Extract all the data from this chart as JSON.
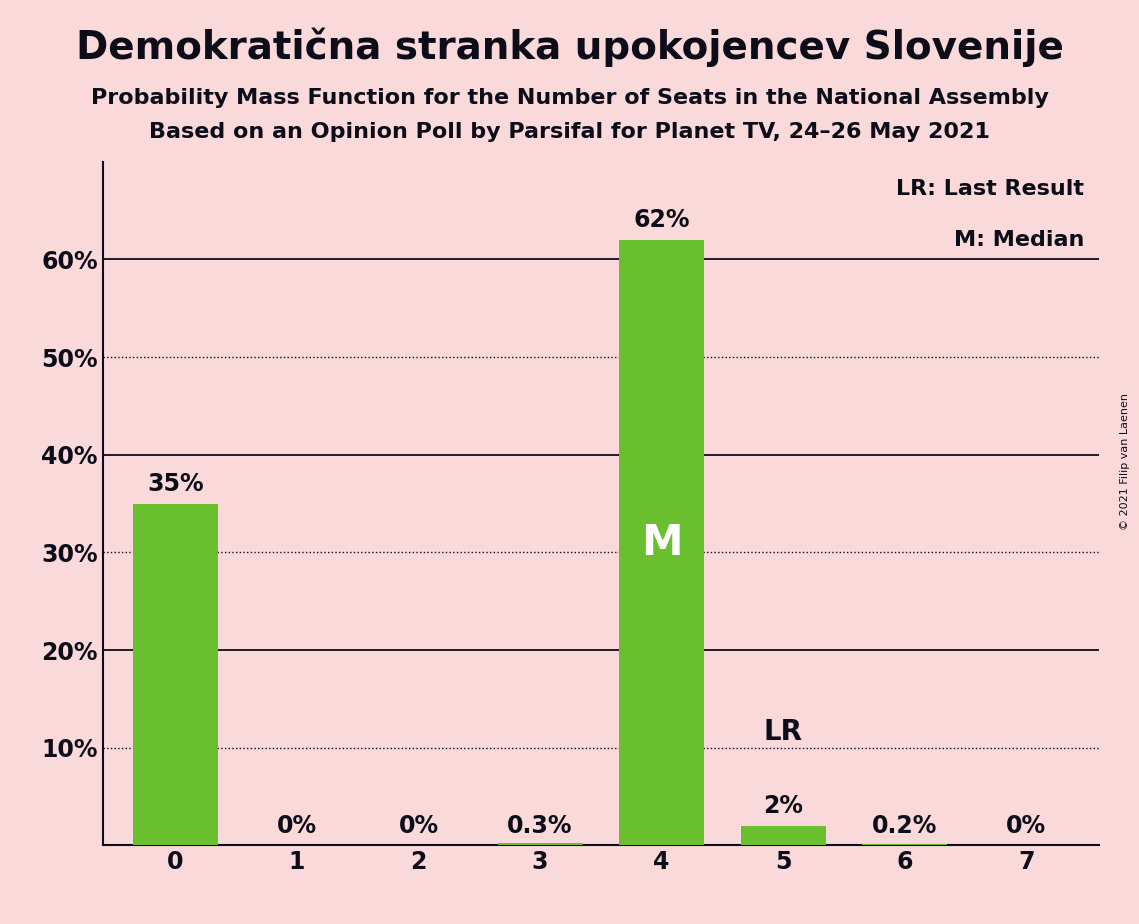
{
  "title": "Demokratična stranka upokojencev Slovenije",
  "subtitle1": "Probability Mass Function for the Number of Seats in the National Assembly",
  "subtitle2": "Based on an Opinion Poll by Parsifal for Planet TV, 24–26 May 2021",
  "copyright": "© 2021 Filip van Laenen",
  "categories": [
    0,
    1,
    2,
    3,
    4,
    5,
    6,
    7
  ],
  "values": [
    0.35,
    0.0,
    0.0,
    0.003,
    0.62,
    0.02,
    0.002,
    0.0
  ],
  "labels": [
    "35%",
    "0%",
    "0%",
    "0.3%",
    "62%",
    "2%",
    "0.2%",
    "0%"
  ],
  "bar_color": "#6abf2e",
  "background_color": "#f9d9d9",
  "median_bar": 4,
  "lr_bar": 5,
  "median_label": "M",
  "lr_label": "LR",
  "legend_lr": "LR: Last Result",
  "legend_m": "M: Median",
  "ylim": [
    0,
    0.7
  ],
  "yticks": [
    0.0,
    0.1,
    0.2,
    0.3,
    0.4,
    0.5,
    0.6
  ],
  "ytick_labels": [
    "",
    "10%",
    "20%",
    "30%",
    "40%",
    "50%",
    "60%"
  ],
  "solid_grid": [
    0.2,
    0.4,
    0.6
  ],
  "dotted_grid": [
    0.1,
    0.3,
    0.5
  ],
  "title_fontsize": 28,
  "subtitle_fontsize": 16,
  "label_fontsize": 17,
  "tick_fontsize": 17,
  "median_label_fontsize": 30,
  "lr_label_fontsize": 20,
  "legend_fontsize": 16
}
